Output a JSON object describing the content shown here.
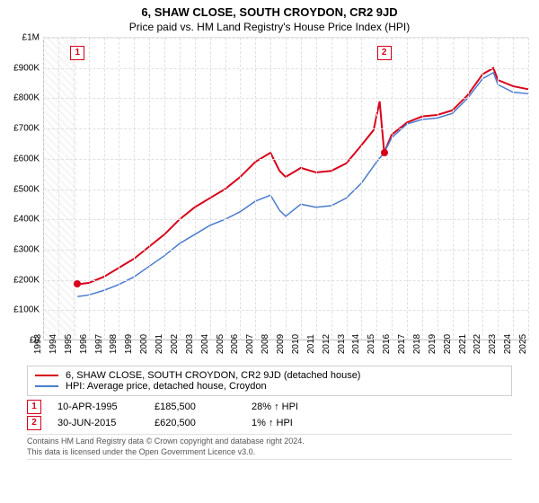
{
  "title": "6, SHAW CLOSE, SOUTH CROYDON, CR2 9JD",
  "subtitle": "Price paid vs. HM Land Registry's House Price Index (HPI)",
  "chart": {
    "type": "line",
    "ylim": [
      0,
      1000000
    ],
    "ytick_step": 100000,
    "ytick_labels": [
      "£0",
      "£100K",
      "£200K",
      "£300K",
      "£400K",
      "£500K",
      "£600K",
      "£700K",
      "£800K",
      "£900K",
      "£1M"
    ],
    "x_years": [
      1993,
      1994,
      1995,
      1996,
      1997,
      1998,
      1999,
      2000,
      2001,
      2002,
      2003,
      2004,
      2005,
      2006,
      2007,
      2008,
      2009,
      2010,
      2011,
      2012,
      2013,
      2014,
      2015,
      2016,
      2017,
      2018,
      2019,
      2020,
      2021,
      2022,
      2023,
      2024,
      2025
    ],
    "grid_color": "#e0e0e0",
    "background_color": "#ffffff",
    "hatch_end_year": 1995.25,
    "series": [
      {
        "label": "6, SHAW CLOSE, SOUTH CROYDON, CR2 9JD (detached house)",
        "color": "#d9001b",
        "width": 2,
        "points": [
          [
            1995.27,
            185500
          ],
          [
            1996,
            190000
          ],
          [
            1997,
            210000
          ],
          [
            1998,
            240000
          ],
          [
            1999,
            270000
          ],
          [
            2000,
            310000
          ],
          [
            2001,
            350000
          ],
          [
            2002,
            400000
          ],
          [
            2003,
            440000
          ],
          [
            2004,
            470000
          ],
          [
            2005,
            500000
          ],
          [
            2006,
            540000
          ],
          [
            2007,
            590000
          ],
          [
            2008,
            620000
          ],
          [
            2008.6,
            560000
          ],
          [
            2009,
            540000
          ],
          [
            2010,
            570000
          ],
          [
            2011,
            555000
          ],
          [
            2012,
            560000
          ],
          [
            2013,
            585000
          ],
          [
            2014,
            645000
          ],
          [
            2014.8,
            695000
          ],
          [
            2015.2,
            790000
          ],
          [
            2015.5,
            620500
          ],
          [
            2016,
            680000
          ],
          [
            2017,
            720000
          ],
          [
            2018,
            740000
          ],
          [
            2019,
            745000
          ],
          [
            2020,
            760000
          ],
          [
            2021,
            810000
          ],
          [
            2022,
            880000
          ],
          [
            2022.7,
            900000
          ],
          [
            2023,
            860000
          ],
          [
            2024,
            840000
          ],
          [
            2025,
            830000
          ]
        ]
      },
      {
        "label": "HPI: Average price, detached house, Croydon",
        "color": "#4a7bd0",
        "width": 1.5,
        "points": [
          [
            1995.27,
            145000
          ],
          [
            1996,
            150000
          ],
          [
            1997,
            165000
          ],
          [
            1998,
            185000
          ],
          [
            1999,
            210000
          ],
          [
            2000,
            245000
          ],
          [
            2001,
            280000
          ],
          [
            2002,
            320000
          ],
          [
            2003,
            350000
          ],
          [
            2004,
            380000
          ],
          [
            2005,
            400000
          ],
          [
            2006,
            425000
          ],
          [
            2007,
            460000
          ],
          [
            2008,
            480000
          ],
          [
            2008.6,
            430000
          ],
          [
            2009,
            410000
          ],
          [
            2010,
            450000
          ],
          [
            2011,
            440000
          ],
          [
            2012,
            445000
          ],
          [
            2013,
            470000
          ],
          [
            2014,
            520000
          ],
          [
            2015,
            590000
          ],
          [
            2015.5,
            620000
          ],
          [
            2016,
            670000
          ],
          [
            2017,
            715000
          ],
          [
            2018,
            730000
          ],
          [
            2019,
            735000
          ],
          [
            2020,
            750000
          ],
          [
            2021,
            800000
          ],
          [
            2022,
            865000
          ],
          [
            2022.7,
            885000
          ],
          [
            2023,
            845000
          ],
          [
            2024,
            820000
          ],
          [
            2025,
            815000
          ]
        ]
      }
    ],
    "event_markers": [
      {
        "n": "1",
        "year": 1995.27,
        "value": 185500,
        "color": "#d9001b",
        "box_y": 950000
      },
      {
        "n": "2",
        "year": 2015.5,
        "value": 620500,
        "color": "#d9001b",
        "box_y": 950000
      }
    ]
  },
  "events": [
    {
      "n": "1",
      "date": "10-APR-1995",
      "price": "£185,500",
      "hpi": "28% ↑ HPI",
      "color": "#d9001b"
    },
    {
      "n": "2",
      "date": "30-JUN-2015",
      "price": "£620,500",
      "hpi": "1% ↑ HPI",
      "color": "#d9001b"
    }
  ],
  "footer_line1": "Contains HM Land Registry data © Crown copyright and database right 2024.",
  "footer_line2": "This data is licensed under the Open Government Licence v3.0."
}
